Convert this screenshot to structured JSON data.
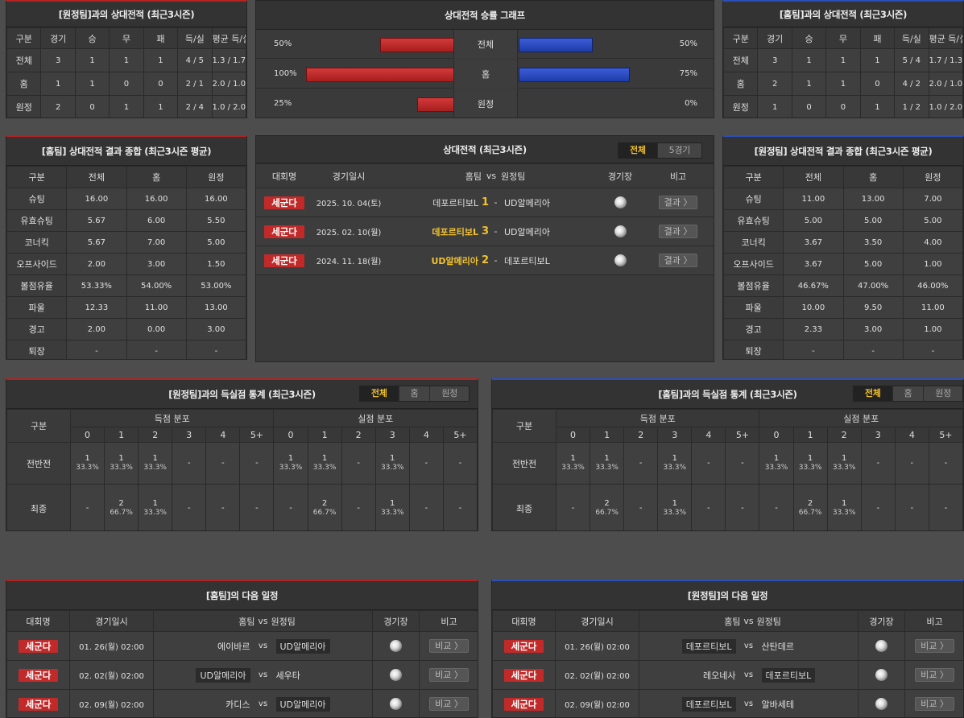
{
  "colors": {
    "accent_red": "#c22a2a",
    "accent_blue": "#2a4fb8",
    "highlight": "#f3c22a"
  },
  "icon": "stadium-ball-icon",
  "away_h2h": {
    "title": "[원정팀]과의 상대전적 (최근3시즌)",
    "headers": [
      "구분",
      "경기",
      "승",
      "무",
      "패",
      "득/실",
      "평균 득/실"
    ],
    "rows": [
      [
        "전체",
        "3",
        "1",
        "1",
        "1",
        "4 / 5",
        "1.3 / 1.7"
      ],
      [
        "홈",
        "1",
        "1",
        "0",
        "0",
        "2 / 1",
        "2.0 / 1.0"
      ],
      [
        "원정",
        "2",
        "0",
        "1",
        "1",
        "2 / 4",
        "1.0 / 2.0"
      ]
    ]
  },
  "home_h2h": {
    "title": "[홈팀]과의 상대전적 (최근3시즌)",
    "headers": [
      "구분",
      "경기",
      "승",
      "무",
      "패",
      "득/실",
      "평균 득/실"
    ],
    "rows": [
      [
        "전체",
        "3",
        "1",
        "1",
        "1",
        "5 / 4",
        "1.7 / 1.3"
      ],
      [
        "홈",
        "2",
        "1",
        "1",
        "0",
        "4 / 2",
        "2.0 / 1.0"
      ],
      [
        "원정",
        "1",
        "0",
        "0",
        "1",
        "1 / 2",
        "1.0 / 2.0"
      ]
    ]
  },
  "graph": {
    "title": "상대전적 승률 그래프",
    "rows": [
      {
        "label": "전체",
        "left_text": "50%",
        "left": 0.5,
        "right_text": "50%",
        "right": 0.5
      },
      {
        "label": "홈",
        "left_text": "100%",
        "left": 1.0,
        "right_text": "75%",
        "right": 0.75
      },
      {
        "label": "원정",
        "left_text": "25%",
        "left": 0.25,
        "right_text": "0%",
        "right": 0.0
      }
    ]
  },
  "home_summary": {
    "title": "[홈팀] 상대전적 결과 종합 (최근3시즌 평균)",
    "headers": [
      "구분",
      "전체",
      "홈",
      "원정"
    ],
    "rows": [
      [
        "슈팅",
        "16.00",
        "16.00",
        "16.00"
      ],
      [
        "유효슈팅",
        "5.67",
        "6.00",
        "5.50"
      ],
      [
        "코너킥",
        "5.67",
        "7.00",
        "5.00"
      ],
      [
        "오프사이드",
        "2.00",
        "3.00",
        "1.50"
      ],
      [
        "볼점유율",
        "53.33%",
        "54.00%",
        "53.00%"
      ],
      [
        "파울",
        "12.33",
        "11.00",
        "13.00"
      ],
      [
        "경고",
        "2.00",
        "0.00",
        "3.00"
      ],
      [
        "퇴장",
        "-",
        "-",
        "-"
      ]
    ]
  },
  "away_summary": {
    "title": "[원정팀] 상대전적 결과 종합 (최근3시즌 평균)",
    "headers": [
      "구분",
      "전체",
      "홈",
      "원정"
    ],
    "rows": [
      [
        "슈팅",
        "11.00",
        "13.00",
        "7.00"
      ],
      [
        "유효슈팅",
        "5.00",
        "5.00",
        "5.00"
      ],
      [
        "코너킥",
        "3.67",
        "3.50",
        "4.00"
      ],
      [
        "오프사이드",
        "3.67",
        "5.00",
        "1.00"
      ],
      [
        "볼점유율",
        "46.67%",
        "47.00%",
        "46.00%"
      ],
      [
        "파울",
        "10.00",
        "9.50",
        "11.00"
      ],
      [
        "경고",
        "2.33",
        "3.00",
        "1.00"
      ],
      [
        "퇴장",
        "-",
        "-",
        "-"
      ]
    ]
  },
  "h2h_list": {
    "title": "상대전적 (최근3시즌)",
    "tabs": [
      "전체",
      "5경기"
    ],
    "headers": {
      "league": "대회명",
      "date": "경기일시",
      "home": "홈팀",
      "vs": "vs",
      "away": "원정팀",
      "venue": "경기장",
      "note": "비고"
    },
    "rows": [
      {
        "league": "세군다",
        "date": "2025. 10. 04(토)",
        "home": "데포르티보L",
        "home_hl": false,
        "hs": "1",
        "as": "1",
        "away": "UD알메리아",
        "btn": "결과 〉"
      },
      {
        "league": "세군다",
        "date": "2025. 02. 10(월)",
        "home": "데포르티보L",
        "home_hl": true,
        "hs": "3",
        "as": "1",
        "away": "UD알메리아",
        "btn": "결과 〉"
      },
      {
        "league": "세군다",
        "date": "2024. 11. 18(월)",
        "home": "UD알메리아",
        "home_hl": true,
        "hs": "2",
        "as": "1",
        "away": "데포르티보L",
        "btn": "결과 〉"
      }
    ]
  },
  "goals_away": {
    "title": "[원정팀]과의 득실점 통계 (최근3시즌)",
    "tabs": [
      "전체",
      "홈",
      "원정"
    ],
    "col_label": "구분",
    "scored": "득점 분포",
    "conceded": "실점 분포",
    "buckets": [
      "0",
      "1",
      "2",
      "3",
      "4",
      "5+"
    ],
    "rows": [
      {
        "label": "전반전",
        "cells": [
          [
            "1",
            "33.3%"
          ],
          [
            "1",
            "33.3%"
          ],
          [
            "1",
            "33.3%"
          ],
          [
            "-",
            ""
          ],
          [
            "-",
            ""
          ],
          [
            "-",
            ""
          ],
          [
            "1",
            "33.3%"
          ],
          [
            "1",
            "33.3%"
          ],
          [
            "-",
            ""
          ],
          [
            "1",
            "33.3%"
          ],
          [
            "-",
            ""
          ],
          [
            "-",
            ""
          ]
        ]
      },
      {
        "label": "최종",
        "cells": [
          [
            "-",
            ""
          ],
          [
            "2",
            "66.7%"
          ],
          [
            "1",
            "33.3%"
          ],
          [
            "-",
            ""
          ],
          [
            "-",
            ""
          ],
          [
            "-",
            ""
          ],
          [
            "-",
            ""
          ],
          [
            "2",
            "66.7%"
          ],
          [
            "-",
            ""
          ],
          [
            "1",
            "33.3%"
          ],
          [
            "-",
            ""
          ],
          [
            "-",
            ""
          ]
        ]
      }
    ]
  },
  "goals_home": {
    "title": "[홈팀]과의 득실점 통계 (최근3시즌)",
    "tabs": [
      "전체",
      "홈",
      "원정"
    ],
    "col_label": "구분",
    "scored": "득점 분포",
    "conceded": "실점 분포",
    "buckets": [
      "0",
      "1",
      "2",
      "3",
      "4",
      "5+"
    ],
    "rows": [
      {
        "label": "전반전",
        "cells": [
          [
            "1",
            "33.3%"
          ],
          [
            "1",
            "33.3%"
          ],
          [
            "-",
            ""
          ],
          [
            "1",
            "33.3%"
          ],
          [
            "-",
            ""
          ],
          [
            "-",
            ""
          ],
          [
            "1",
            "33.3%"
          ],
          [
            "1",
            "33.3%"
          ],
          [
            "1",
            "33.3%"
          ],
          [
            "-",
            ""
          ],
          [
            "-",
            ""
          ],
          [
            "-",
            ""
          ]
        ]
      },
      {
        "label": "최종",
        "cells": [
          [
            "-",
            ""
          ],
          [
            "2",
            "66.7%"
          ],
          [
            "-",
            ""
          ],
          [
            "1",
            "33.3%"
          ],
          [
            "-",
            ""
          ],
          [
            "-",
            ""
          ],
          [
            "-",
            ""
          ],
          [
            "2",
            "66.7%"
          ],
          [
            "1",
            "33.3%"
          ],
          [
            "-",
            ""
          ],
          [
            "-",
            ""
          ],
          [
            "-",
            ""
          ]
        ]
      }
    ]
  },
  "next_home": {
    "title": "[홈팀]의 다음 일정",
    "headers": {
      "league": "대회명",
      "date": "경기일시",
      "home": "홈팀",
      "vs": "vs",
      "away": "원정팀",
      "venue": "경기장",
      "note": "비고"
    },
    "rows": [
      {
        "league": "세군다",
        "date": "01. 26(월) 02:00",
        "home": "에이바르",
        "home_box": false,
        "away": "UD알메리아",
        "away_box": true,
        "btn": "비교 〉"
      },
      {
        "league": "세군다",
        "date": "02. 02(월) 02:00",
        "home": "UD알메리아",
        "home_box": true,
        "away": "세우타",
        "away_box": false,
        "btn": "비교 〉"
      },
      {
        "league": "세군다",
        "date": "02. 09(월) 02:00",
        "home": "카디스",
        "home_box": false,
        "away": "UD알메리아",
        "away_box": true,
        "btn": "비교 〉"
      }
    ]
  },
  "next_away": {
    "title": "[원정팀]의 다음 일정",
    "headers": {
      "league": "대회명",
      "date": "경기일시",
      "home": "홈팀",
      "vs": "vs",
      "away": "원정팀",
      "venue": "경기장",
      "note": "비고"
    },
    "rows": [
      {
        "league": "세군다",
        "date": "01. 26(월) 02:00",
        "home": "데포르티보L",
        "home_box": true,
        "away": "산탄데르",
        "away_box": false,
        "btn": "비교 〉"
      },
      {
        "league": "세군다",
        "date": "02. 02(월) 02:00",
        "home": "레오네사",
        "home_box": false,
        "away": "데포르티보L",
        "away_box": true,
        "btn": "비교 〉"
      },
      {
        "league": "세군다",
        "date": "02. 09(월) 02:00",
        "home": "데포르티보L",
        "home_box": true,
        "away": "알바세테",
        "away_box": false,
        "btn": "비교 〉"
      }
    ]
  }
}
